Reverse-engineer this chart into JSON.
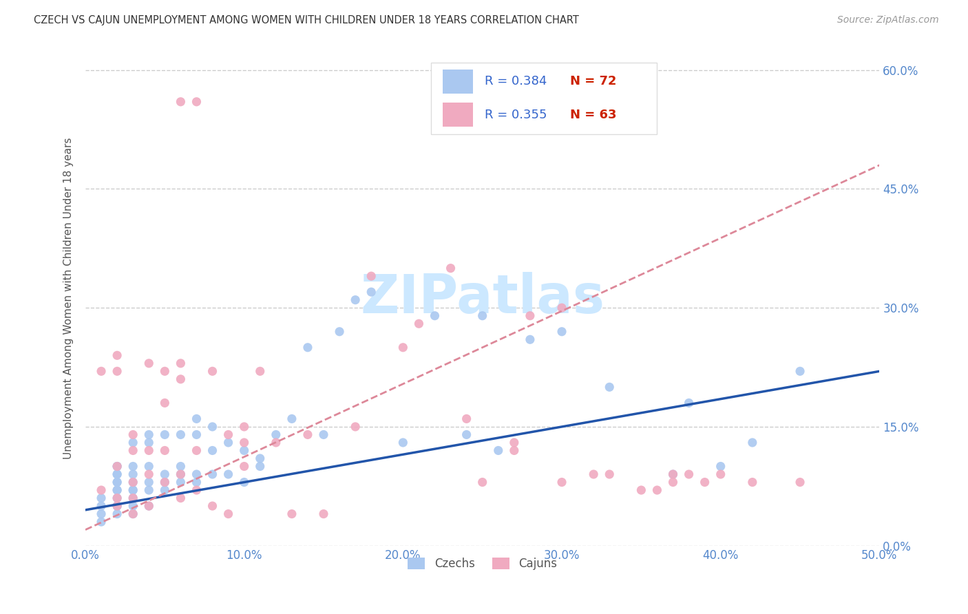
{
  "title": "CZECH VS CAJUN UNEMPLOYMENT AMONG WOMEN WITH CHILDREN UNDER 18 YEARS CORRELATION CHART",
  "source": "Source: ZipAtlas.com",
  "ylabel": "Unemployment Among Women with Children Under 18 years",
  "xlim": [
    0.0,
    0.5
  ],
  "ylim": [
    0.0,
    0.625
  ],
  "xticks": [
    0.0,
    0.1,
    0.2,
    0.3,
    0.4,
    0.5
  ],
  "xticklabels": [
    "0.0%",
    "10.0%",
    "20.0%",
    "30.0%",
    "40.0%",
    "50.0%"
  ],
  "yticks": [
    0.0,
    0.15,
    0.3,
    0.45,
    0.6
  ],
  "yticklabels": [
    "0.0%",
    "15.0%",
    "30.0%",
    "45.0%",
    "60.0%"
  ],
  "czech_color": "#aac8f0",
  "cajun_color": "#f0aac0",
  "czech_line_color": "#2255aa",
  "cajun_line_color": "#dd8899",
  "grid_color": "#cccccc",
  "title_color": "#333333",
  "axis_label_color": "#555555",
  "tick_color": "#5588cc",
  "legend_R_color": "#3465cc",
  "legend_N_color": "#cc2200",
  "czech_R": 0.384,
  "czech_N": 72,
  "cajun_R": 0.355,
  "cajun_N": 63,
  "czech_line_x0": 0.0,
  "czech_line_y0": 0.045,
  "czech_line_x1": 0.5,
  "czech_line_y1": 0.22,
  "cajun_line_x0": 0.0,
  "cajun_line_y0": 0.02,
  "cajun_line_x1": 0.5,
  "cajun_line_y1": 0.48,
  "czech_scatter_x": [
    0.01,
    0.01,
    0.01,
    0.01,
    0.02,
    0.02,
    0.02,
    0.02,
    0.02,
    0.02,
    0.02,
    0.02,
    0.02,
    0.02,
    0.02,
    0.02,
    0.03,
    0.03,
    0.03,
    0.03,
    0.03,
    0.03,
    0.03,
    0.03,
    0.03,
    0.04,
    0.04,
    0.04,
    0.04,
    0.04,
    0.04,
    0.05,
    0.05,
    0.05,
    0.05,
    0.06,
    0.06,
    0.06,
    0.06,
    0.07,
    0.07,
    0.07,
    0.07,
    0.08,
    0.08,
    0.08,
    0.09,
    0.09,
    0.1,
    0.1,
    0.11,
    0.11,
    0.12,
    0.13,
    0.14,
    0.15,
    0.16,
    0.17,
    0.18,
    0.2,
    0.22,
    0.24,
    0.25,
    0.26,
    0.28,
    0.3,
    0.33,
    0.37,
    0.38,
    0.4,
    0.42,
    0.45
  ],
  "czech_scatter_y": [
    0.03,
    0.04,
    0.05,
    0.06,
    0.04,
    0.05,
    0.05,
    0.06,
    0.07,
    0.07,
    0.08,
    0.08,
    0.09,
    0.09,
    0.1,
    0.1,
    0.04,
    0.05,
    0.06,
    0.07,
    0.07,
    0.08,
    0.09,
    0.1,
    0.13,
    0.05,
    0.07,
    0.08,
    0.1,
    0.13,
    0.14,
    0.07,
    0.08,
    0.09,
    0.14,
    0.08,
    0.09,
    0.1,
    0.14,
    0.08,
    0.09,
    0.14,
    0.16,
    0.09,
    0.12,
    0.15,
    0.09,
    0.13,
    0.08,
    0.12,
    0.1,
    0.11,
    0.14,
    0.16,
    0.25,
    0.14,
    0.27,
    0.31,
    0.32,
    0.13,
    0.29,
    0.14,
    0.29,
    0.12,
    0.26,
    0.27,
    0.2,
    0.09,
    0.18,
    0.1,
    0.13,
    0.22
  ],
  "cajun_scatter_x": [
    0.01,
    0.01,
    0.02,
    0.02,
    0.02,
    0.02,
    0.02,
    0.03,
    0.03,
    0.03,
    0.03,
    0.03,
    0.04,
    0.04,
    0.04,
    0.04,
    0.05,
    0.05,
    0.05,
    0.05,
    0.06,
    0.06,
    0.06,
    0.06,
    0.06,
    0.07,
    0.07,
    0.07,
    0.08,
    0.08,
    0.09,
    0.09,
    0.1,
    0.1,
    0.1,
    0.11,
    0.12,
    0.13,
    0.14,
    0.15,
    0.17,
    0.18,
    0.2,
    0.21,
    0.23,
    0.24,
    0.25,
    0.27,
    0.27,
    0.28,
    0.3,
    0.3,
    0.32,
    0.33,
    0.35,
    0.36,
    0.37,
    0.37,
    0.38,
    0.39,
    0.4,
    0.42,
    0.45
  ],
  "cajun_scatter_y": [
    0.07,
    0.22,
    0.05,
    0.06,
    0.1,
    0.22,
    0.24,
    0.04,
    0.06,
    0.08,
    0.12,
    0.14,
    0.05,
    0.09,
    0.12,
    0.23,
    0.08,
    0.12,
    0.18,
    0.22,
    0.06,
    0.09,
    0.21,
    0.23,
    0.56,
    0.07,
    0.12,
    0.56,
    0.05,
    0.22,
    0.04,
    0.14,
    0.1,
    0.13,
    0.15,
    0.22,
    0.13,
    0.04,
    0.14,
    0.04,
    0.15,
    0.34,
    0.25,
    0.28,
    0.35,
    0.16,
    0.08,
    0.12,
    0.13,
    0.29,
    0.08,
    0.3,
    0.09,
    0.09,
    0.07,
    0.07,
    0.08,
    0.09,
    0.09,
    0.08,
    0.09,
    0.08,
    0.08
  ],
  "watermark": "ZIPatlas",
  "watermark_color": "#cce8ff",
  "background_color": "#ffffff"
}
